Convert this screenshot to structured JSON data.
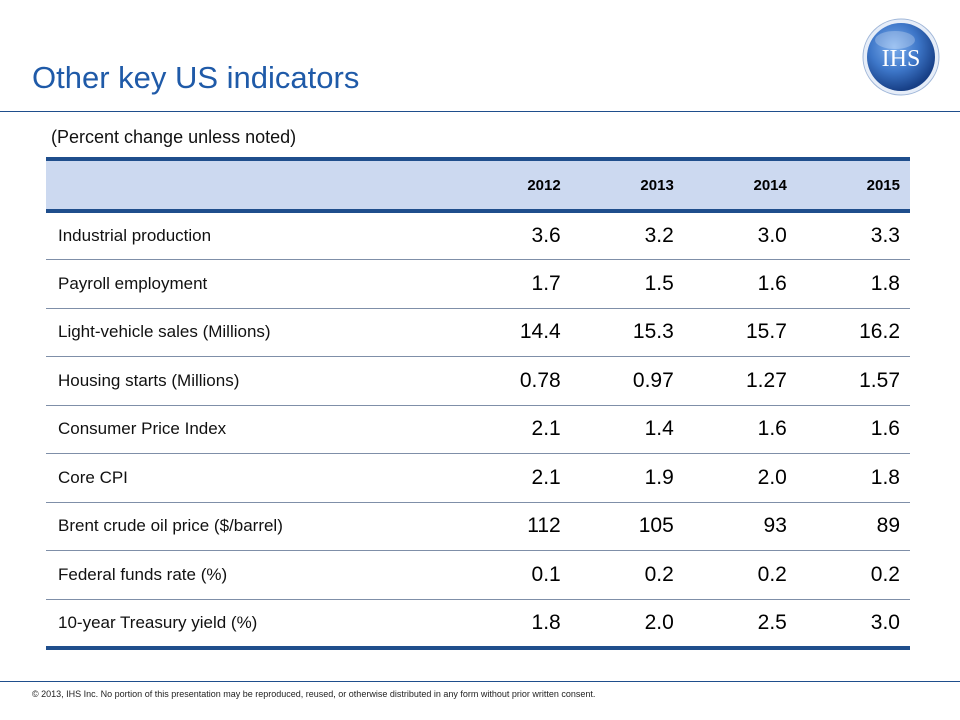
{
  "header": {
    "title": "Other key US indicators",
    "logo_text": "IHS",
    "logo_colors": {
      "inner": "#5b8fd6",
      "outer": "#1a4f9c"
    }
  },
  "subtitle": "(Percent change unless noted)",
  "table": {
    "columns": [
      "",
      "2012",
      "2013",
      "2014",
      "2015"
    ],
    "rows": [
      {
        "label": "Industrial production",
        "values": [
          "3.6",
          "3.2",
          "3.0",
          "3.3"
        ]
      },
      {
        "label": "Payroll employment",
        "values": [
          "1.7",
          "1.5",
          "1.6",
          "1.8"
        ]
      },
      {
        "label": "Light-vehicle sales (Millions)",
        "values": [
          "14.4",
          "15.3",
          "15.7",
          "16.2"
        ]
      },
      {
        "label": "Housing starts (Millions)",
        "values": [
          "0.78",
          "0.97",
          "1.27",
          "1.57"
        ]
      },
      {
        "label": "Consumer Price Index",
        "values": [
          "2.1",
          "1.4",
          "1.6",
          "1.6"
        ]
      },
      {
        "label": "Core CPI",
        "values": [
          "2.1",
          "1.9",
          "2.0",
          "1.8"
        ]
      },
      {
        "label": "Brent crude oil price ($/barrel)",
        "values": [
          "112",
          "105",
          "93",
          "89"
        ]
      },
      {
        "label": "Federal funds rate (%)",
        "values": [
          "0.1",
          "0.2",
          "0.2",
          "0.2"
        ]
      },
      {
        "label": "10-year Treasury yield (%)",
        "values": [
          "1.8",
          "2.0",
          "2.5",
          "3.0"
        ]
      }
    ]
  },
  "footer": {
    "copyright": "© 2013, IHS Inc. No portion of this presentation may be reproduced, reused, or otherwise distributed in any form without prior written consent."
  },
  "colors": {
    "title": "#1f5aa8",
    "rule": "#1f4e8c",
    "header_fill": "#ccd9f0"
  }
}
